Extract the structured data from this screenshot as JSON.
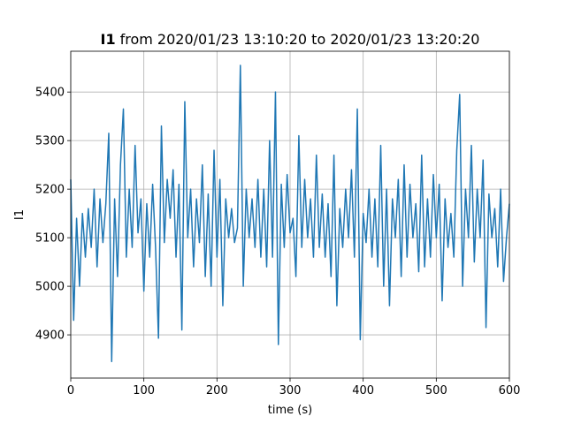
{
  "chart_data": {
    "type": "line",
    "title_bold": "I1",
    "title": "from 2020/01/23 13:10:20 to 2020/01/23 13:20:20",
    "xlabel": "time (s)",
    "ylabel": "I1",
    "xlim": [
      0,
      600
    ],
    "xticks": [
      0,
      100,
      200,
      300,
      400,
      500,
      600
    ],
    "ylim": [
      4811,
      5484
    ],
    "yticks": [
      4900,
      5000,
      5100,
      5200,
      5300,
      5400
    ],
    "grid": true,
    "series": [
      {
        "color": "#1f77b4",
        "x": [
          0,
          4,
          8,
          12,
          16,
          20,
          24,
          28,
          32,
          36,
          40,
          44,
          48,
          52,
          56,
          60,
          64,
          68,
          72,
          76,
          80,
          84,
          88,
          92,
          96,
          100,
          104,
          108,
          112,
          116,
          120,
          124,
          128,
          132,
          136,
          140,
          144,
          148,
          152,
          156,
          160,
          164,
          168,
          172,
          176,
          180,
          184,
          188,
          192,
          196,
          200,
          204,
          208,
          212,
          216,
          220,
          224,
          228,
          232,
          236,
          240,
          244,
          248,
          252,
          256,
          260,
          264,
          268,
          272,
          276,
          280,
          284,
          288,
          292,
          296,
          300,
          304,
          308,
          312,
          316,
          320,
          324,
          328,
          332,
          336,
          340,
          344,
          348,
          352,
          356,
          360,
          364,
          368,
          372,
          376,
          380,
          384,
          388,
          392,
          396,
          400,
          404,
          408,
          412,
          416,
          420,
          424,
          428,
          432,
          436,
          440,
          444,
          448,
          452,
          456,
          460,
          464,
          468,
          472,
          476,
          480,
          484,
          488,
          492,
          496,
          500,
          504,
          508,
          512,
          516,
          520,
          524,
          528,
          532,
          536,
          540,
          544,
          548,
          552,
          556,
          560,
          564,
          568,
          572,
          576,
          580,
          584,
          588,
          592,
          596,
          600
        ],
        "values": [
          5220,
          4930,
          5140,
          5000,
          5150,
          5060,
          5160,
          5080,
          5200,
          5040,
          5180,
          5090,
          5170,
          5315,
          4845,
          5180,
          5020,
          5250,
          5365,
          5060,
          5200,
          5080,
          5290,
          5110,
          5180,
          4990,
          5170,
          5060,
          5210,
          5080,
          4893,
          5330,
          5090,
          5220,
          5140,
          5240,
          5060,
          5210,
          4910,
          5380,
          5100,
          5200,
          5040,
          5180,
          5090,
          5250,
          5020,
          5190,
          5000,
          5280,
          5060,
          5220,
          4960,
          5180,
          5100,
          5160,
          5090,
          5120,
          5455,
          5000,
          5200,
          5100,
          5180,
          5080,
          5220,
          5060,
          5200,
          5040,
          5300,
          5060,
          5400,
          4880,
          5210,
          5080,
          5230,
          5110,
          5140,
          5020,
          5310,
          5080,
          5220,
          5100,
          5180,
          5060,
          5270,
          5080,
          5190,
          5060,
          5170,
          5020,
          5270,
          4960,
          5160,
          5080,
          5200,
          5100,
          5240,
          5060,
          5365,
          4890,
          5150,
          5090,
          5200,
          5060,
          5180,
          5040,
          5290,
          5000,
          5200,
          4960,
          5180,
          5100,
          5220,
          5020,
          5250,
          5060,
          5210,
          5100,
          5170,
          5030,
          5270,
          5040,
          5180,
          5060,
          5230,
          5100,
          5210,
          4970,
          5180,
          5080,
          5150,
          5060,
          5280,
          5395,
          5000,
          5200,
          5100,
          5290,
          5050,
          5200,
          5100,
          5260,
          4915,
          5190,
          5100,
          5160,
          5040,
          5200,
          5010,
          5100,
          5170
        ]
      }
    ]
  }
}
